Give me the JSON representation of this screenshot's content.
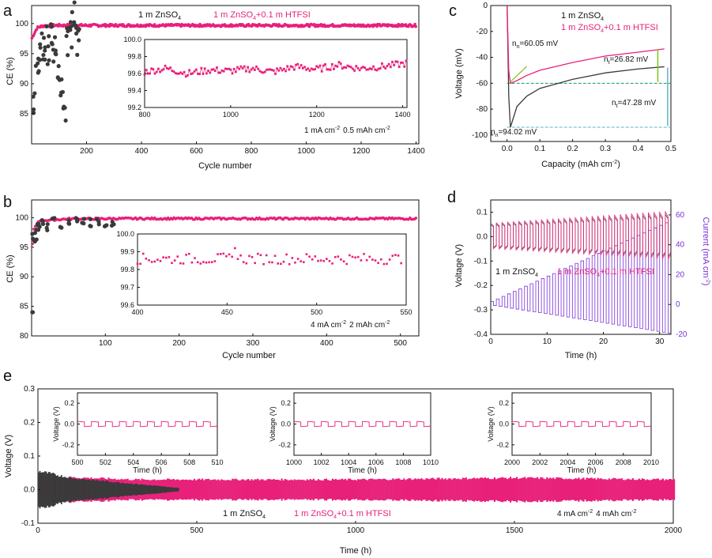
{
  "colors": {
    "pink": "#e8207a",
    "dark": "#3a3a3a",
    "green": "#11a060",
    "lightgreen": "#7fc41a",
    "cyan": "#5ab7c2",
    "purple": "#7a30d9",
    "axis": "#111111"
  },
  "chart_data": [
    {
      "panel": "a",
      "type": "scatter",
      "xlabel": "Cycle number",
      "ylabel": "CE (%)",
      "xlim": [
        0,
        1410
      ],
      "ylim": [
        80,
        103
      ],
      "xticks": [
        "200",
        "400",
        "600",
        "800",
        "1000",
        "1200",
        "1400"
      ],
      "yticks": [
        "85",
        "90",
        "95",
        "100"
      ],
      "series": [
        {
          "name": "1 m ZnSO4",
          "color": "#3a3a3a",
          "x": [
            10,
            20,
            30,
            40,
            50,
            60,
            70,
            80,
            90,
            100,
            110,
            120,
            130,
            140,
            150,
            160,
            170
          ],
          "values": [
            88,
            93,
            95,
            96,
            97,
            95,
            98,
            96,
            97,
            93,
            88,
            86,
            97,
            98,
            99,
            101,
            97
          ]
        },
        {
          "name": "1 m ZnSO4+0.1 m HTFSI",
          "color": "#e8207a",
          "x": [
            0,
            20,
            40,
            80,
            200,
            400,
            800,
            1200,
            1400
          ],
          "values": [
            97.5,
            99.3,
            99.6,
            99.7,
            99.7,
            99.7,
            99.7,
            99.7,
            99.7
          ]
        }
      ],
      "legend": [
        "1 m ZnSO",
        "4",
        "1 m ZnSO",
        "4",
        "+0.1 m HTFSI"
      ],
      "inset": {
        "xticks": [
          "800",
          "1000",
          "1200",
          "1400"
        ],
        "yticks": [
          "99.2",
          "99.4",
          "99.6",
          "99.8",
          "100.0"
        ],
        "xlim": [
          800,
          1410
        ],
        "ylim": [
          99.2,
          100.0
        ],
        "x": [
          800,
          850,
          900,
          950,
          1000,
          1050,
          1100,
          1150,
          1200,
          1250,
          1300,
          1350,
          1410
        ],
        "values": [
          99.62,
          99.66,
          99.6,
          99.64,
          99.63,
          99.66,
          99.62,
          99.68,
          99.65,
          99.7,
          99.66,
          99.68,
          99.72
        ],
        "note_a": "1 mA cm",
        "note_b": "-2",
        "note_c": "0.5 mAh cm",
        "note_d": "-2"
      }
    },
    {
      "panel": "b",
      "type": "scatter",
      "xlabel": "Cycle number",
      "ylabel": "CE (%)",
      "xlim": [
        0,
        525
      ],
      "ylim": [
        80,
        103
      ],
      "xticks": [
        "100",
        "200",
        "300",
        "400",
        "500"
      ],
      "yticks": [
        "80",
        "85",
        "90",
        "95",
        "100"
      ],
      "series": [
        {
          "name": "1 m ZnSO4",
          "color": "#3a3a3a",
          "x": [
            1,
            3,
            5,
            8,
            10,
            15,
            20,
            30,
            40,
            50,
            60,
            70,
            80,
            90,
            100,
            110
          ],
          "values": [
            84,
            97,
            96,
            98,
            98.5,
            99,
            98.5,
            99.5,
            99,
            98.8,
            99.3,
            99.5,
            99.2,
            99.6,
            99,
            99.4
          ]
        },
        {
          "name": "1 m ZnSO4+0.1 m HTFSI",
          "color": "#e8207a",
          "x": [
            1,
            3,
            10,
            50,
            120,
            200,
            300,
            400,
            520
          ],
          "values": [
            95.5,
            98,
            99.5,
            99.8,
            99.85,
            99.85,
            99.85,
            99.85,
            99.85
          ]
        }
      ],
      "inset": {
        "xticks": [
          "400",
          "450",
          "500",
          "550"
        ],
        "yticks": [
          "99.6",
          "99.7",
          "99.8",
          "99.9",
          "100.0"
        ],
        "xlim": [
          400,
          550
        ],
        "ylim": [
          99.6,
          100.0
        ],
        "values_mean": 99.86,
        "note_a": "4 mA cm",
        "note_b": "-2",
        "note_c": "2 mAh cm",
        "note_d": "-2"
      }
    },
    {
      "panel": "c",
      "type": "line",
      "xlabel": "Capacity (mAh cm",
      "xlabel_sup": "-2",
      "xlabel_end": ")",
      "ylabel": "Voltage (mV)",
      "xlim": [
        -0.05,
        0.5
      ],
      "ylim": [
        -105,
        0
      ],
      "xticks": [
        "0.0",
        "0.1",
        "0.2",
        "0.3",
        "0.4",
        "0.5"
      ],
      "yticks": [
        "-100",
        "-80",
        "-60",
        "-40",
        "-20",
        "0"
      ],
      "series": [
        {
          "name": "1 m ZnSO4",
          "color": "#3a3a3a",
          "x": [
            0,
            0.005,
            0.01,
            0.03,
            0.06,
            0.1,
            0.2,
            0.3,
            0.4,
            0.48
          ],
          "values": [
            0,
            -70,
            -94.02,
            -78,
            -70,
            -64,
            -57,
            -52,
            -49,
            -47.28
          ]
        },
        {
          "name": "1 m ZnSO4+0.1 m HTFSI",
          "color": "#e8207a",
          "x": [
            0,
            0.005,
            0.01,
            0.03,
            0.06,
            0.1,
            0.2,
            0.3,
            0.4,
            0.48
          ],
          "values": [
            0,
            -50,
            -60.05,
            -58,
            -54,
            -50,
            -44,
            -39,
            -36,
            -33.5
          ]
        }
      ],
      "annotations": [
        "n",
        "n",
        "=60.05 mV",
        "=26.82 mV",
        "=47.28 mV",
        "=94.02 mV"
      ],
      "sub_n": "n",
      "sub_t": "t"
    },
    {
      "panel": "d",
      "type": "line",
      "xlabel": "Time (h)",
      "ylabel": "Voltage (V)",
      "ylabel_right": "Current (mA cm",
      "ylabel_right_sup": "-2",
      "ylabel_right_end": ")",
      "xlim": [
        0,
        32
      ],
      "ylim": [
        -0.4,
        0.15
      ],
      "xticks": [
        "0",
        "10",
        "20",
        "30"
      ],
      "yticks": [
        "-0.4",
        "-0.3",
        "-0.2",
        "-0.1",
        "0.0",
        "0.1"
      ],
      "yticks_right": [
        "-20",
        "0",
        "20",
        "40",
        "60"
      ],
      "steps": [
        1,
        2,
        3,
        4,
        5,
        6,
        7,
        8,
        9,
        10,
        11,
        12,
        13,
        14,
        15,
        16,
        17,
        18,
        19,
        20
      ]
    },
    {
      "panel": "e",
      "type": "line",
      "xlabel": "Time (h)",
      "ylabel": "Voltage (V)",
      "xlim": [
        0,
        2000
      ],
      "ylim": [
        -0.1,
        0.3
      ],
      "xticks": [
        "0",
        "500",
        "1000",
        "1500",
        "2000"
      ],
      "yticks": [
        "-0.1",
        "0.0",
        "0.1",
        "0.2",
        "0.3"
      ],
      "series": [
        {
          "name": "1 m ZnSO4",
          "color": "#3a3a3a",
          "x": [
            0,
            100,
            440
          ],
          "amplitude": [
            0.055,
            0.035,
            0.005
          ]
        },
        {
          "name": "1 m ZnSO4+0.1 m HTFSI",
          "color": "#e8207a",
          "x": [
            0,
            300,
            1000,
            1500,
            2000
          ],
          "amplitude": [
            0.04,
            0.03,
            0.03,
            0.035,
            0.03
          ]
        }
      ],
      "insets": [
        {
          "xticks": [
            "500",
            "502",
            "504",
            "506",
            "508",
            "510"
          ]
        },
        {
          "xticks": [
            "1000",
            "1002",
            "1004",
            "1006",
            "1008",
            "1010"
          ]
        },
        {
          "xticks": [
            "2000",
            "2002",
            "2004",
            "2006",
            "2008",
            "2010"
          ]
        }
      ],
      "inset_yticks": [
        "0.2",
        "0.0",
        "-0.2"
      ],
      "inset_xlabel": "Time (h)",
      "inset_ylabel": "Voltage (V)",
      "note_a": "4 mA cm",
      "note_b": "-2",
      "note_c": "4 mAh cm",
      "note_d": "-2"
    }
  ],
  "panel_letters": [
    "a",
    "b",
    "c",
    "d",
    "e"
  ]
}
